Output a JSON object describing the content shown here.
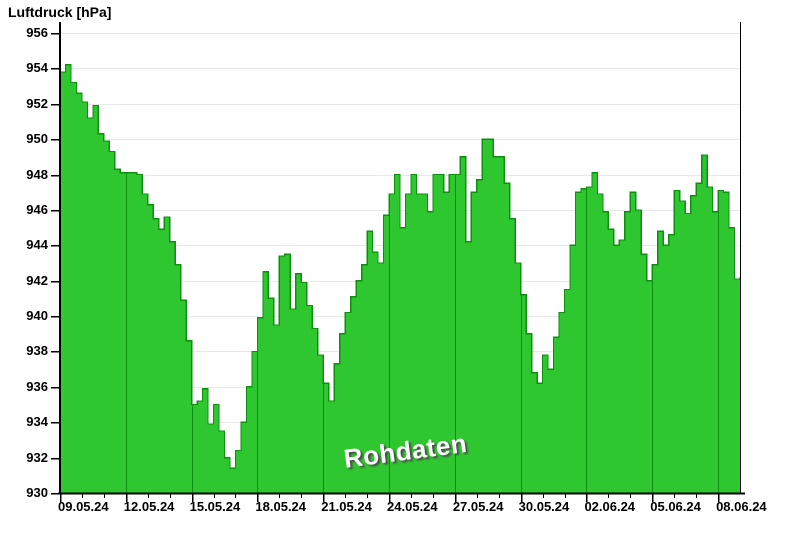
{
  "title": "Luftdruck [hPa]",
  "watermark": "Rohdaten",
  "axes": {
    "y": {
      "unit": "hPa",
      "min": 930,
      "max": 956,
      "tick_step": 2,
      "tick_values": [
        930,
        932,
        934,
        936,
        938,
        940,
        942,
        944,
        946,
        948,
        950,
        952,
        954,
        956
      ]
    },
    "x": {
      "start_date": "09.05.24",
      "end_date": "09.06.24",
      "span_days": 31,
      "major_tick_every_days": 3,
      "minor_tick_every_days": 1,
      "tick_labels": [
        "09.05.24",
        "12.05.24",
        "15.05.24",
        "18.05.24",
        "21.05.24",
        "24.05.24",
        "27.05.24",
        "30.05.24",
        "02.06.24",
        "05.06.24",
        "08.06.24"
      ]
    }
  },
  "chart_data": {
    "type": "area",
    "title": "Luftdruck [hPa]",
    "ylabel": "Luftdruck [hPa]",
    "xlabel": "",
    "ylim": [
      930,
      957.3
    ],
    "grid": "horizontal light gray, vertical dark-green major lines visible only inside filled area",
    "legend": "none",
    "watermark": "Rohdaten",
    "sample_interval_hours": 6,
    "series": [
      {
        "name": "Luftdruck Rohdaten",
        "unit": "hPa",
        "start": "09.05.24 00:00",
        "values": [
          953.8,
          954.2,
          953.2,
          952.6,
          952.1,
          951.2,
          951.9,
          950.3,
          949.9,
          949.3,
          948.3,
          948.1,
          948.1,
          948.1,
          948.0,
          946.9,
          946.3,
          945.5,
          944.9,
          945.6,
          944.2,
          942.9,
          940.9,
          938.6,
          935.0,
          935.2,
          935.9,
          933.9,
          935.0,
          933.5,
          932.0,
          931.4,
          932.4,
          934.0,
          936.0,
          938.0,
          939.9,
          942.5,
          941.0,
          939.5,
          943.4,
          943.5,
          940.4,
          942.4,
          941.9,
          940.6,
          939.3,
          937.8,
          936.2,
          935.2,
          937.3,
          939.0,
          940.2,
          941.1,
          942.0,
          942.9,
          944.8,
          943.6,
          943.0,
          945.7,
          946.9,
          948.0,
          945.0,
          946.9,
          948.0,
          946.9,
          946.9,
          945.9,
          948.0,
          948.0,
          947.0,
          948.0,
          948.0,
          949.0,
          944.2,
          947.0,
          947.7,
          950.0,
          950.0,
          949.0,
          949.0,
          947.5,
          945.5,
          943.0,
          941.2,
          939.0,
          936.8,
          936.2,
          937.8,
          937.0,
          938.8,
          940.2,
          941.5,
          944.0,
          947.0,
          947.2,
          947.3,
          948.1,
          946.9,
          945.9,
          944.9,
          944.0,
          944.3,
          945.9,
          947.0,
          946.0,
          943.5,
          942.0,
          942.9,
          944.8,
          944.0,
          944.6,
          947.1,
          946.5,
          945.8,
          946.8,
          947.5,
          949.1,
          947.3,
          945.9,
          947.1,
          947.0,
          945.0,
          942.1,
          942.2
        ]
      }
    ]
  },
  "colors": {
    "fill": "#2fc72f",
    "outline": "#0f8f0f",
    "grid_h": "#e8e8e8",
    "grid_v_in_area": "#0f8f0f",
    "axis": "#000000",
    "text": "#000000",
    "watermark_text": "#ffffff",
    "watermark_shadow": "#4a4a4a",
    "background": "#ffffff"
  }
}
